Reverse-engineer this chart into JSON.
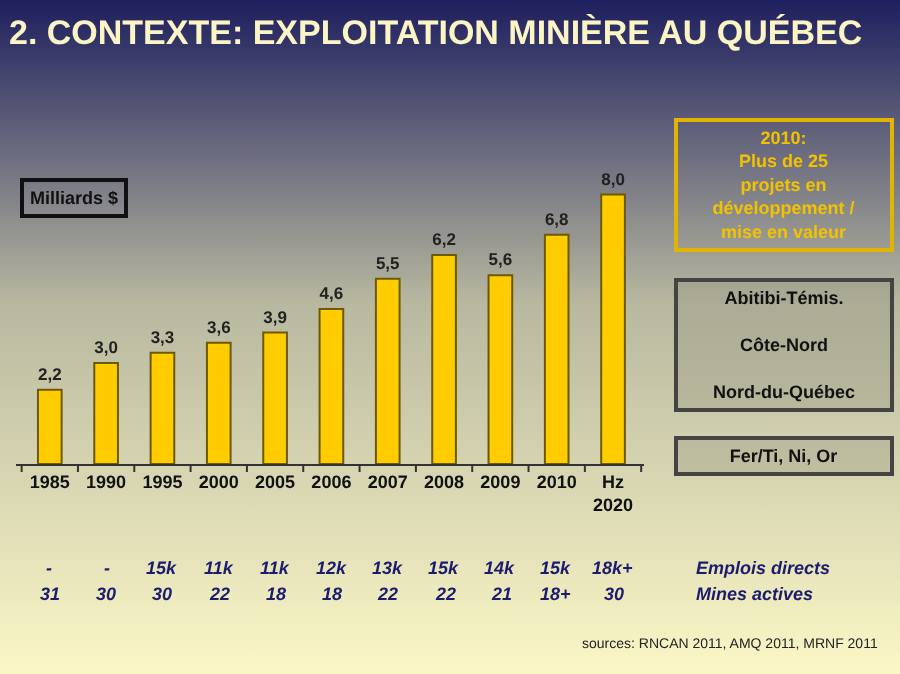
{
  "chart_data": {
    "type": "bar",
    "title": "2. CONTEXTE: EXPLOITATION MINIÈRE AU QUÉBEC",
    "ylabel": "Milliards $",
    "categories": [
      "1985",
      "1990",
      "1995",
      "2000",
      "2005",
      "2006",
      "2007",
      "2008",
      "2009",
      "2010",
      "Hz\n2020"
    ],
    "values": [
      2.2,
      3.0,
      3.3,
      3.6,
      3.9,
      4.6,
      5.5,
      6.2,
      5.6,
      6.8,
      8.0
    ],
    "value_labels": [
      "2,2",
      "3,0",
      "3,3",
      "3,6",
      "3,9",
      "4,6",
      "5,5",
      "6,2",
      "5,6",
      "6,8",
      "8,0"
    ],
    "color": "#ffcc00",
    "annotations": [
      "2010:\nPlus de 25\nprojets en\ndéveloppement /\nmise en valeur",
      "Abitibi-Témis.\n\nCôte-Nord\n\nNord-du-Québec",
      "Fer/Ti, Ni, Or",
      "Emplois directs",
      "Mines actives",
      "sources: RNCAN 2011, AMQ 2011, MRNF 2011",
      "-",
      "-",
      "15k",
      "11k",
      "11k",
      "12k",
      "13k",
      "15k",
      "14k",
      "15k",
      "18k+",
      "31",
      "30",
      "30",
      "22",
      "18",
      "18",
      "22",
      "22",
      "21",
      "18+",
      "30"
    ]
  }
}
